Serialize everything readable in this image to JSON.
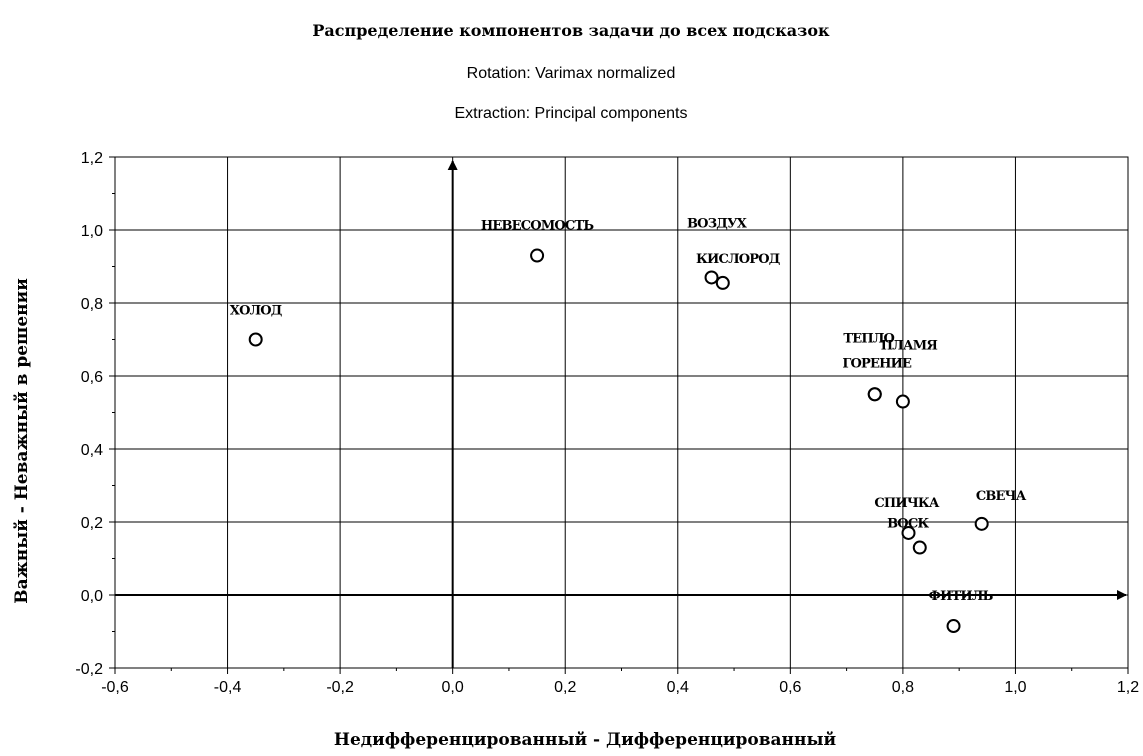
{
  "chart_data": {
    "type": "scatter",
    "title": "Распределение компонентов задачи до всех подсказок",
    "subtitle_lines": [
      "Rotation: Varimax normalized",
      "Extraction: Principal components"
    ],
    "xlabel": "Недифференцированный   -   Дифференцированный",
    "ylabel": "Важный   -   Неважный в решении",
    "xlim": [
      -0.6,
      1.2
    ],
    "ylim": [
      -0.2,
      1.2
    ],
    "x_ticks": [
      "-0,6",
      "-0,4",
      "-0,2",
      "0,0",
      "0,2",
      "0,4",
      "0,6",
      "0,8",
      "1,0",
      "1,2"
    ],
    "y_ticks": [
      "1,2",
      "1,0",
      "0,8",
      "0,6",
      "0,4",
      "0,2",
      "0,0",
      "-0,2"
    ],
    "grid": true,
    "points": [
      {
        "label": "ХОЛОД",
        "x": -0.35,
        "y": 0.7
      },
      {
        "label": "НЕВЕСОМОСТЬ",
        "x": 0.15,
        "y": 0.93
      },
      {
        "label": "ВОЗДУХ",
        "x": 0.46,
        "y": 0.87
      },
      {
        "label": "КИСЛОРОД",
        "x": 0.48,
        "y": 0.855
      },
      {
        "label": "ТЕПЛО",
        "x": 0.75,
        "y": 0.55
      },
      {
        "label": "ПЛАМЯ",
        "x": 0.8,
        "y": 0.53
      },
      {
        "label": "ГОРЕНИЕ",
        "x": 0.75,
        "y": 0.55
      },
      {
        "label": "СПИЧКА",
        "x": 0.81,
        "y": 0.17
      },
      {
        "label": "ВОСК",
        "x": 0.83,
        "y": 0.13
      },
      {
        "label": "СВЕЧА",
        "x": 0.94,
        "y": 0.195
      },
      {
        "label": "ФИТИЛЬ",
        "x": 0.89,
        "y": -0.085
      }
    ]
  }
}
